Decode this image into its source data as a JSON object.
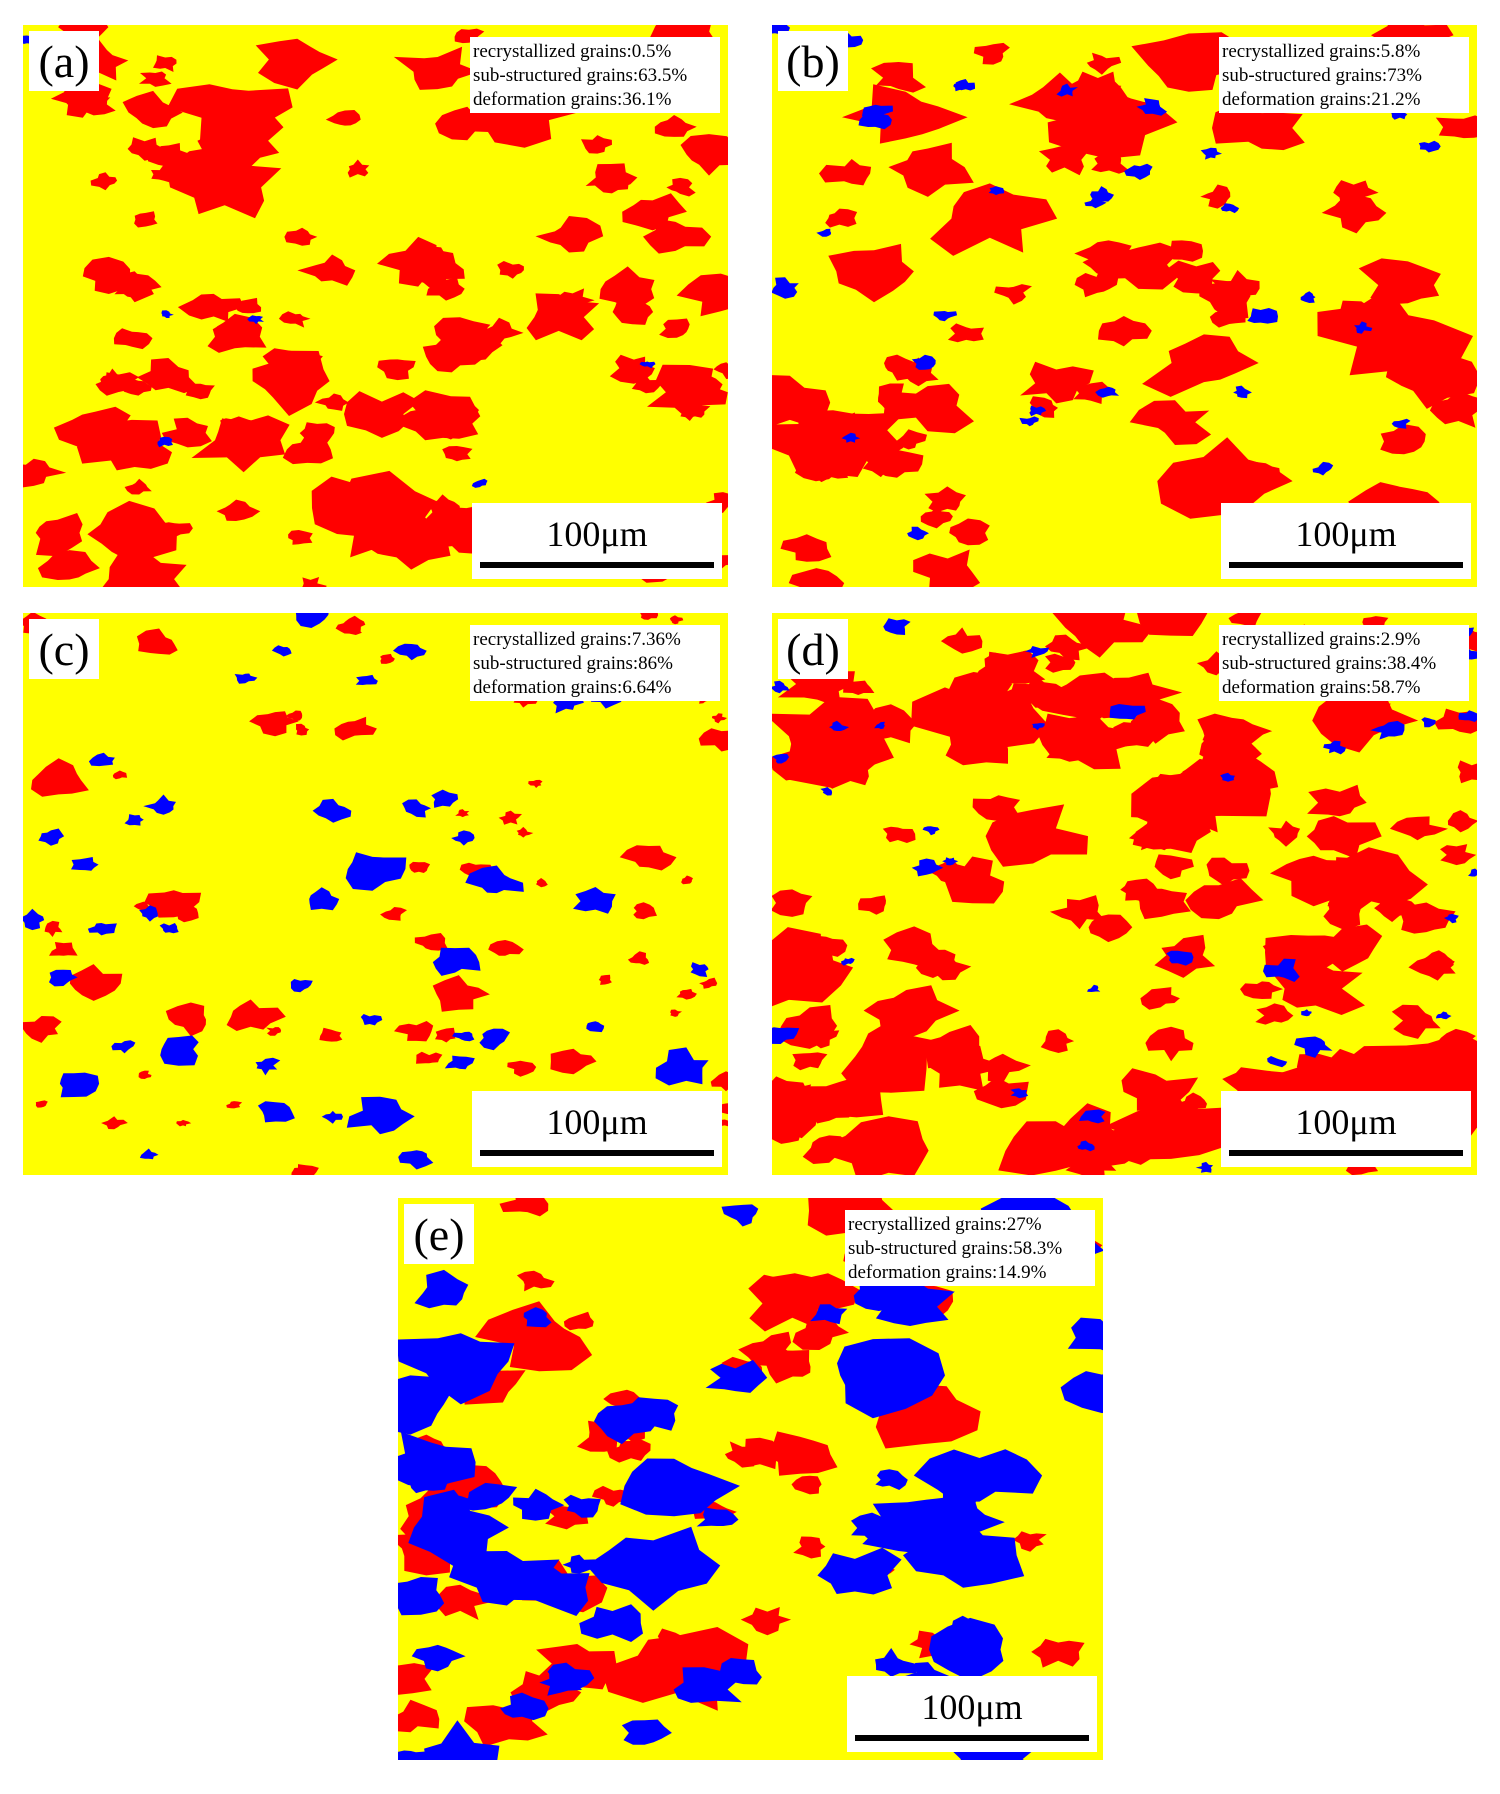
{
  "panels": [
    {
      "label": "(a)",
      "stats": [
        "recrystallized grains:0.5%",
        "sub-structured grains:63.5%",
        "deformation grains:36.1%"
      ],
      "scale_bar": "100μm"
    },
    {
      "label": "(b)",
      "stats": [
        "recrystallized grains:5.8%",
        "sub-structured grains:73%",
        "deformation grains:21.2%"
      ],
      "scale_bar": "100μm"
    },
    {
      "label": "(c)",
      "stats": [
        "recrystallized grains:7.36%",
        "sub-structured grains:86%",
        "deformation grains:6.64%"
      ],
      "scale_bar": "100μm"
    },
    {
      "label": "(d)",
      "stats": [
        "recrystallized grains:2.9%",
        "sub-structured grains:38.4%",
        "deformation grains:58.7%"
      ],
      "scale_bar": "100μm"
    },
    {
      "label": "(e)",
      "stats": [
        "recrystallized grains:27%",
        "sub-structured grains:58.3%",
        "deformation grains:14.9%"
      ],
      "scale_bar": "100μm"
    }
  ]
}
